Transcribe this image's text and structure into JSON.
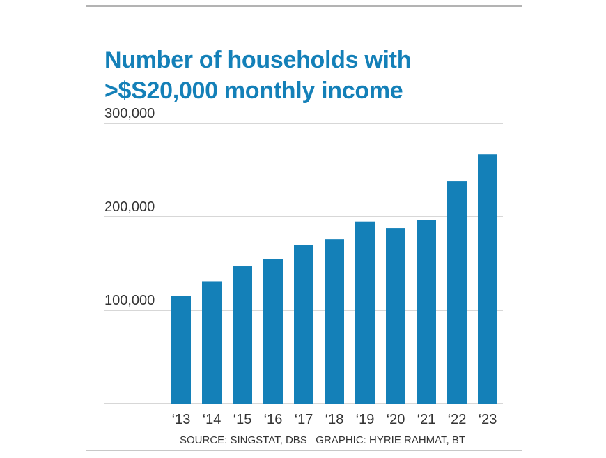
{
  "chart_data": {
    "type": "bar",
    "title_lines": [
      "Number of households with",
      ">$S20,000 monthly income"
    ],
    "categories": [
      "‘13",
      "‘14",
      "‘15",
      "‘16",
      "‘17",
      "‘18",
      "‘19",
      "‘20",
      "‘21",
      "‘22",
      "‘23"
    ],
    "values": [
      115000,
      131000,
      147000,
      155000,
      170000,
      176000,
      195000,
      188000,
      197000,
      238000,
      267000
    ],
    "ylim": [
      0,
      300000
    ],
    "yticks": [
      {
        "value": 100000,
        "label": "100,000"
      },
      {
        "value": 200000,
        "label": "200,000"
      },
      {
        "value": 300000,
        "label": "300,000"
      }
    ],
    "gridlines": [
      0,
      100000,
      200000,
      300000
    ],
    "grid": true,
    "bar_color": "#1480b8",
    "grid_color": "#bfbfbf"
  },
  "footer": {
    "text": "SOURCE: SINGSTAT, DBS   GRAPHIC: HYRIE RAHMAT, BT"
  }
}
